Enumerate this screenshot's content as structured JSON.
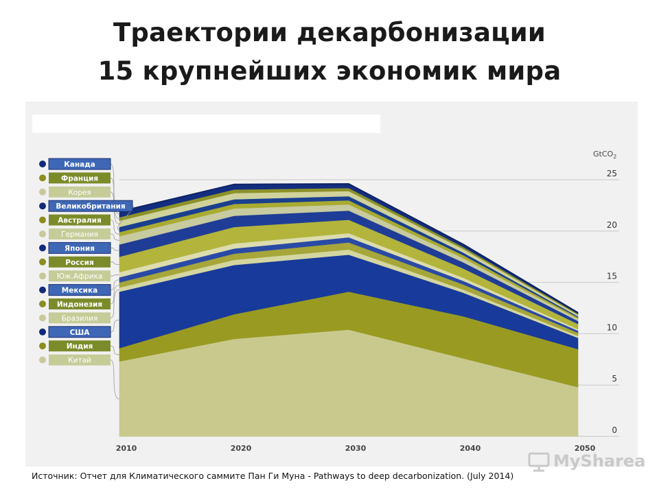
{
  "title_line1": "Траектории декарбонизации",
  "title_line2": "15 крупнейших экономик мира",
  "source": "Источник: Отчет для Климатического саммите Пан Ги Муна - Pathways to deep decarbonization. (July 2014)",
  "watermark": "MySharea",
  "chart_data": {
    "type": "area",
    "stacked": true,
    "unit_label": "GtCO2",
    "x": [
      2010,
      2020,
      2030,
      2040,
      2050
    ],
    "x_ticks": [
      "2010",
      "2020",
      "2030",
      "2040",
      "2050"
    ],
    "y_ticks": [
      "0",
      "5",
      "10",
      "15",
      "20",
      "25"
    ],
    "xlim": [
      2010,
      2050
    ],
    "ylim": [
      0,
      25
    ],
    "grid": true,
    "legend_position": "left",
    "series": [
      {
        "name": "Китай",
        "color": "#c9c98e",
        "values": [
          7.3,
          9.5,
          10.4,
          7.6,
          4.8
        ]
      },
      {
        "name": "Индия",
        "color": "#999a22",
        "values": [
          1.3,
          2.4,
          3.7,
          4.1,
          3.7
        ]
      },
      {
        "name": "США",
        "color": "#183a9a",
        "values": [
          5.5,
          4.8,
          3.6,
          2.3,
          1.1
        ]
      },
      {
        "name": "Бразилия",
        "color": "#d4d6a0",
        "values": [
          0.4,
          0.5,
          0.5,
          0.3,
          0.2
        ]
      },
      {
        "name": "Индонезия",
        "color": "#a6a63a",
        "values": [
          0.5,
          0.6,
          0.7,
          0.5,
          0.3
        ]
      },
      {
        "name": "Мексика",
        "color": "#2a4aa5",
        "values": [
          0.5,
          0.5,
          0.5,
          0.35,
          0.2
        ]
      },
      {
        "name": "Юж.Африка",
        "color": "#dcdcae",
        "values": [
          0.5,
          0.5,
          0.4,
          0.3,
          0.15
        ]
      },
      {
        "name": "Россия",
        "color": "#b2b43c",
        "values": [
          1.5,
          1.6,
          1.3,
          0.9,
          0.5
        ]
      },
      {
        "name": "Япония",
        "color": "#1f3d96",
        "values": [
          1.2,
          1.1,
          0.9,
          0.6,
          0.3
        ]
      },
      {
        "name": "Германия",
        "color": "#c8caa0",
        "values": [
          0.8,
          0.7,
          0.6,
          0.4,
          0.2
        ]
      },
      {
        "name": "Австралия",
        "color": "#a9ab32",
        "values": [
          0.4,
          0.45,
          0.4,
          0.3,
          0.15
        ]
      },
      {
        "name": "Великобритания",
        "color": "#1a3f8f",
        "values": [
          0.5,
          0.45,
          0.4,
          0.25,
          0.1
        ]
      },
      {
        "name": "Корея",
        "color": "#d0d29c",
        "values": [
          0.6,
          0.6,
          0.5,
          0.35,
          0.15
        ]
      },
      {
        "name": "Франция",
        "color": "#8c9228",
        "values": [
          0.35,
          0.35,
          0.3,
          0.2,
          0.1
        ]
      },
      {
        "name": "Канада",
        "color": "#132e7e",
        "values": [
          0.55,
          0.5,
          0.4,
          0.25,
          0.1
        ]
      }
    ],
    "legend_order": [
      "Канада",
      "Франция",
      "Корея",
      "Великобритания",
      "Австралия",
      "Германия",
      "Япония",
      "Россия",
      "Юж.Африка",
      "Мексика",
      "Индонезия",
      "Бразилия",
      "США",
      "Индия",
      "Китай"
    ],
    "colors": {
      "bullet_blue": "#14297a",
      "bullet_olive": "#8b8d20",
      "bullet_light": "#c8c89a",
      "label_blue": "#3e67b5",
      "label_olive": "#7c8b2a",
      "label_light": "#c6cc98"
    }
  }
}
